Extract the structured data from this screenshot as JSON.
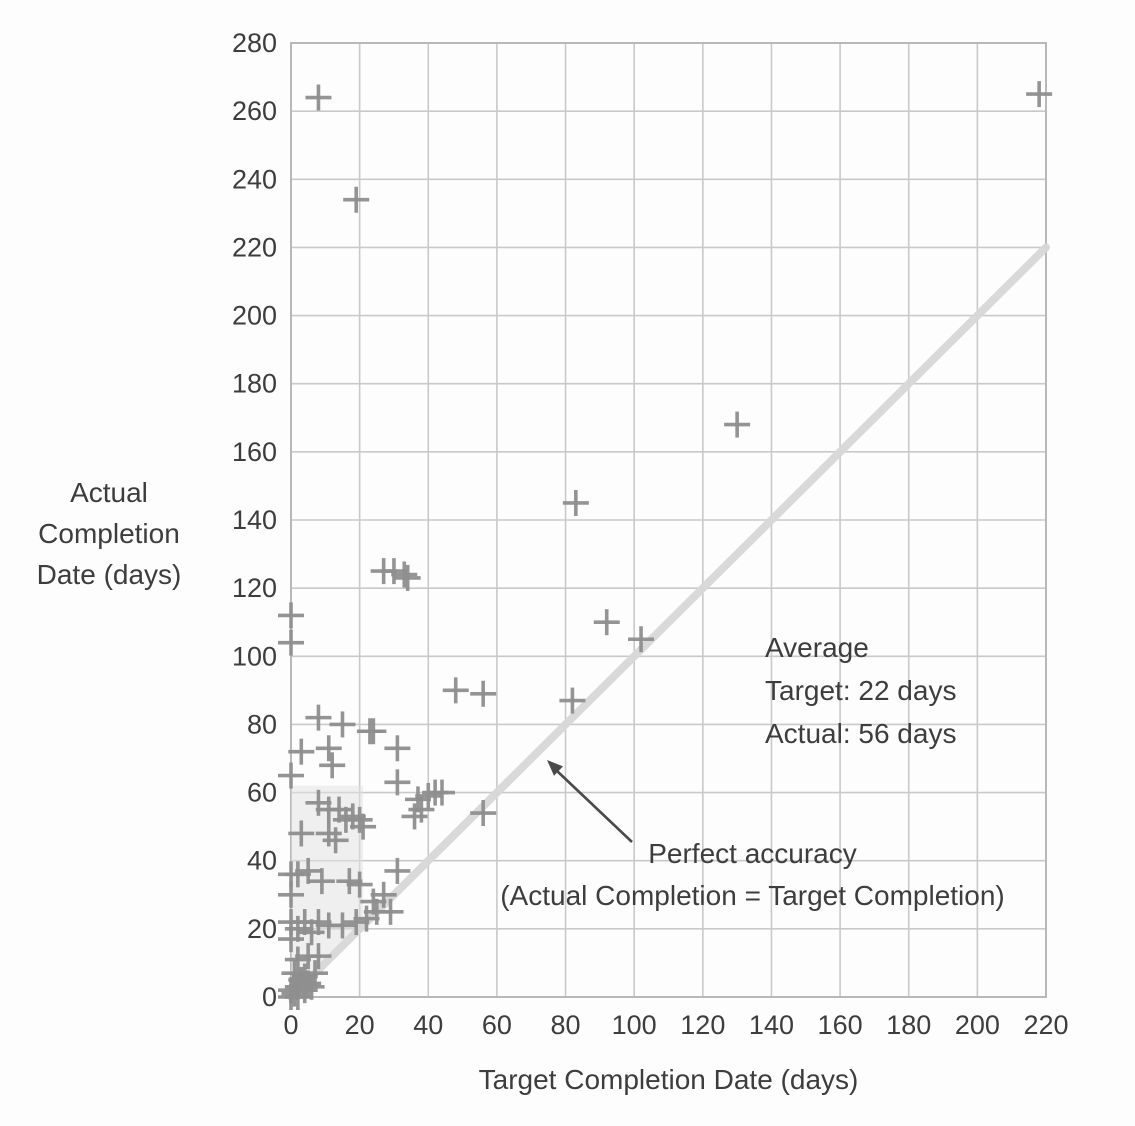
{
  "chart_data": {
    "type": "scatter",
    "title": "",
    "xlabel": "Target Completion Date (days)",
    "ylabel_lines": [
      "Actual",
      "Completion",
      "Date (days)"
    ],
    "xlim": [
      0,
      220
    ],
    "ylim": [
      0,
      280
    ],
    "xticks": [
      0,
      20,
      40,
      60,
      80,
      100,
      120,
      140,
      160,
      180,
      200,
      220
    ],
    "yticks": [
      0,
      20,
      40,
      60,
      80,
      100,
      120,
      140,
      160,
      180,
      200,
      220,
      240,
      260,
      280
    ],
    "grid": true,
    "marker": "plus",
    "points": [
      [
        8,
        264
      ],
      [
        19,
        234
      ],
      [
        218,
        265
      ],
      [
        130,
        168
      ],
      [
        83,
        145
      ],
      [
        27,
        125
      ],
      [
        30,
        125
      ],
      [
        33,
        124
      ],
      [
        34,
        123
      ],
      [
        92,
        110
      ],
      [
        102,
        105
      ],
      [
        0,
        112
      ],
      [
        0,
        104
      ],
      [
        48,
        90
      ],
      [
        56,
        89
      ],
      [
        82,
        87
      ],
      [
        8,
        82
      ],
      [
        15,
        80
      ],
      [
        23,
        78
      ],
      [
        24,
        78
      ],
      [
        3,
        72
      ],
      [
        11,
        73
      ],
      [
        31,
        73
      ],
      [
        12,
        68
      ],
      [
        0,
        65
      ],
      [
        31,
        63
      ],
      [
        42,
        60
      ],
      [
        44,
        60
      ],
      [
        37,
        58
      ],
      [
        40,
        59
      ],
      [
        8,
        57
      ],
      [
        11,
        55
      ],
      [
        14,
        55
      ],
      [
        18,
        53
      ],
      [
        16,
        52
      ],
      [
        20,
        52
      ],
      [
        21,
        50
      ],
      [
        3,
        48
      ],
      [
        11,
        48
      ],
      [
        13,
        46
      ],
      [
        56,
        54
      ],
      [
        36,
        53
      ],
      [
        38,
        55
      ],
      [
        0,
        36
      ],
      [
        2,
        36
      ],
      [
        5,
        37
      ],
      [
        9,
        34
      ],
      [
        17,
        34
      ],
      [
        20,
        33
      ],
      [
        31,
        37
      ],
      [
        27,
        30
      ],
      [
        24,
        28
      ],
      [
        29,
        25
      ],
      [
        25,
        25
      ],
      [
        22,
        23
      ],
      [
        0,
        30
      ],
      [
        0,
        22
      ],
      [
        4,
        22
      ],
      [
        8,
        22
      ],
      [
        11,
        21
      ],
      [
        15,
        21
      ],
      [
        19,
        22
      ],
      [
        2,
        20
      ],
      [
        6,
        19
      ],
      [
        0,
        17
      ],
      [
        2,
        11
      ],
      [
        5,
        12
      ],
      [
        8,
        12
      ],
      [
        1,
        7
      ],
      [
        4,
        6
      ],
      [
        7,
        7
      ],
      [
        3,
        5
      ],
      [
        0,
        2
      ],
      [
        1,
        1
      ],
      [
        2,
        3
      ],
      [
        4,
        2
      ],
      [
        5,
        4
      ],
      [
        0,
        0
      ],
      [
        2,
        0
      ],
      [
        6,
        3
      ]
    ],
    "reference_line": {
      "from": [
        0,
        0
      ],
      "to": [
        220,
        220
      ]
    },
    "highlights": [
      [
        [
          0,
          0
        ],
        [
          0,
          62
        ],
        [
          21,
          62
        ],
        [
          21,
          21
        ]
      ]
    ],
    "annotations": {
      "average": {
        "lines": [
          "Average",
          "Target: 22 days",
          "Actual: 56 days"
        ]
      },
      "accuracy": {
        "lines": [
          "Perfect accuracy",
          "(Actual Completion = Target Completion)"
        ]
      }
    },
    "legend_position": "none",
    "colors": {
      "marker": "#8f8f8f",
      "grid": "#c9c9c9",
      "axis_box": "#b8b8b8",
      "reference_line": "#d8d8d8",
      "text": "#3d3d3d",
      "arrow": "#4a4a4a",
      "highlight": "#e2e2e2"
    }
  }
}
